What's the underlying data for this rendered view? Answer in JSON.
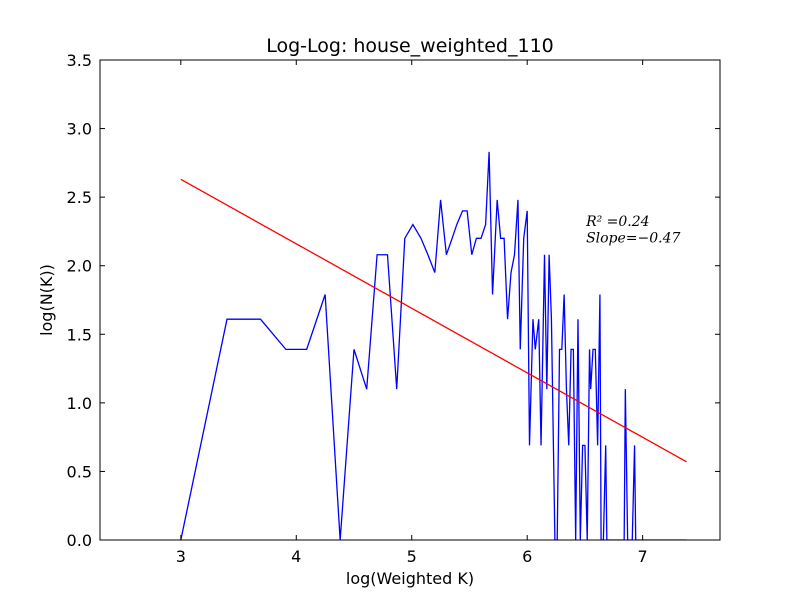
{
  "chart_data": {
    "type": "line",
    "title": "Log-Log: house_weighted_110",
    "xlabel": "log(Weighted K)",
    "ylabel": "log(N(K))",
    "xlim": [
      2.3,
      7.67
    ],
    "ylim": [
      0.0,
      3.5
    ],
    "x_ticks": [
      "3",
      "4",
      "5",
      "6",
      "7"
    ],
    "y_ticks": [
      "0.0",
      "0.5",
      "1.0",
      "1.5",
      "2.0",
      "2.5",
      "3.0",
      "3.5"
    ],
    "grid": false,
    "series": [
      {
        "color": "#0000ff",
        "x": [
          3.0,
          3.4,
          3.69,
          3.91,
          4.09,
          4.25,
          4.38,
          4.5,
          4.61,
          4.7,
          4.79,
          4.87,
          4.94,
          5.01,
          5.08,
          5.14,
          5.2,
          5.25,
          5.3,
          5.35,
          5.39,
          5.44,
          5.48,
          5.52,
          5.56,
          5.6,
          5.64,
          5.67,
          5.7,
          5.74,
          5.77,
          5.8,
          5.83,
          5.86,
          5.89,
          5.92,
          5.94,
          5.97,
          6.0,
          6.02,
          6.05,
          6.07,
          6.1,
          6.12,
          6.15,
          6.17,
          6.19,
          6.21,
          6.24,
          6.26,
          6.28,
          6.3,
          6.32,
          6.34,
          6.36,
          6.38,
          6.4,
          6.42,
          6.44,
          6.46,
          6.48,
          6.5,
          6.52,
          6.54,
          6.55,
          6.57,
          6.59,
          6.61,
          6.63,
          6.64,
          6.66,
          6.68,
          6.69,
          6.71,
          6.73,
          6.74,
          6.76,
          6.78,
          6.79,
          6.81,
          6.82,
          6.84,
          6.85,
          6.87,
          6.88,
          6.9,
          6.91,
          6.93,
          6.94,
          6.96,
          6.97,
          6.99,
          7.0,
          7.01,
          7.03,
          7.04,
          7.06,
          7.07,
          7.08,
          7.1,
          7.38
        ],
        "y": [
          0.0,
          1.61,
          1.61,
          1.39,
          1.39,
          1.79,
          0.0,
          1.39,
          1.1,
          2.08,
          2.08,
          1.1,
          2.2,
          2.3,
          2.2,
          2.08,
          1.95,
          2.48,
          2.08,
          2.2,
          2.3,
          2.4,
          2.4,
          2.08,
          2.2,
          2.2,
          2.3,
          2.83,
          1.79,
          2.48,
          2.2,
          2.2,
          1.61,
          1.95,
          2.08,
          2.48,
          1.39,
          2.2,
          2.4,
          0.69,
          1.61,
          1.39,
          1.61,
          0.69,
          2.08,
          1.1,
          2.08,
          1.61,
          0.0,
          0.0,
          1.39,
          1.39,
          1.79,
          1.1,
          0.69,
          1.39,
          1.39,
          0.0,
          1.61,
          0.0,
          0.69,
          0.69,
          0.0,
          1.39,
          1.1,
          1.39,
          1.39,
          0.69,
          1.79,
          0.0,
          0.0,
          0.69,
          0.0,
          0.0,
          0.0,
          0.0,
          0.0,
          0.0,
          0.0,
          0.0,
          0.0,
          0.0,
          1.1,
          0.0,
          0.0,
          0.0,
          0.0,
          0.69,
          0.0,
          0.0,
          0.0,
          0.0,
          0.0,
          0.0,
          0.0,
          0.0,
          0.0,
          0.0,
          0.0,
          0.0,
          0.0
        ]
      },
      {
        "color": "#ff0000",
        "x": [
          3.0,
          7.38
        ],
        "y": [
          2.63,
          0.57
        ]
      }
    ],
    "annotations": [
      {
        "text": "R² =0.24",
        "x": 6.51,
        "y": 2.29
      },
      {
        "text": "Slope=−0.47",
        "x": 6.51,
        "y": 2.17
      }
    ]
  }
}
